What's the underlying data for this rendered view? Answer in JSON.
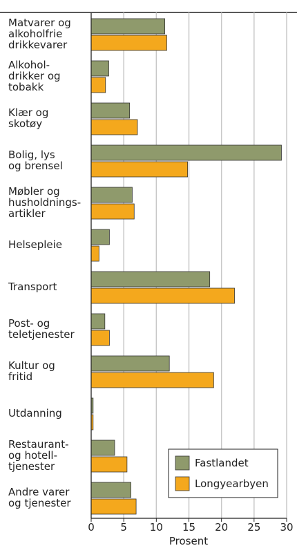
{
  "chart_data": {
    "type": "bar",
    "orientation": "horizontal",
    "categories": [
      "Matvarer og\nalkoholfrie\ndrikkevarer",
      "Alkohol-\ndrikker og\ntobakk",
      "Klær og\nskotøy",
      "Bolig, lys\nog brensel",
      "Møbler og\nhusholdnings-\nartikler",
      "Helsepleie",
      "Transport",
      "Post- og\nteletjenester",
      "Kultur og\nfritid",
      "Utdanning",
      "Restaurant-\nog hotell-\ntjenester",
      "Andre varer\nog tjenester"
    ],
    "series": [
      {
        "name": "Fastlandet",
        "color": "#8f9a6c",
        "values": [
          11.3,
          2.7,
          5.9,
          29.2,
          6.3,
          2.8,
          18.2,
          2.1,
          12.0,
          0.3,
          3.6,
          6.1
        ]
      },
      {
        "name": "Longyearbyen",
        "color": "#f4a81d",
        "values": [
          11.6,
          2.2,
          7.1,
          14.8,
          6.6,
          1.2,
          22.0,
          2.8,
          18.8,
          0.3,
          5.5,
          6.9
        ]
      }
    ],
    "xlabel": "Prosent",
    "xlim": [
      0,
      30
    ],
    "xticks": [
      0,
      5,
      10,
      15,
      20,
      25,
      30
    ],
    "grid": true,
    "legend": "lower right"
  }
}
